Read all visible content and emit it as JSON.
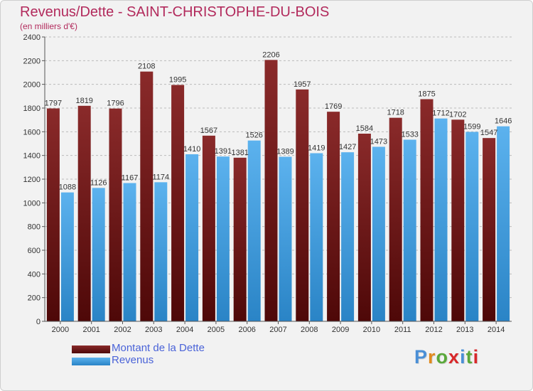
{
  "header": {
    "title": "Revenus/Dette - SAINT-CHRISTOPHE-DU-BOIS",
    "subtitle": "(en milliers d'€)"
  },
  "logo": {
    "text": "Proxiti"
  },
  "legend": [
    {
      "label": "Montant de la Dette",
      "color": "#7a1c1c"
    },
    {
      "label": "Revenus",
      "color": "#4ba6e3"
    }
  ],
  "chart_data": {
    "type": "bar",
    "title": "Revenus/Dette - SAINT-CHRISTOPHE-DU-BOIS",
    "subtitle": "(en milliers d'€)",
    "categories": [
      "2000",
      "2001",
      "2002",
      "2003",
      "2004",
      "2005",
      "2006",
      "2007",
      "2008",
      "2009",
      "2010",
      "2011",
      "2012",
      "2013",
      "2014"
    ],
    "series": [
      {
        "name": "Montant de la Dette",
        "color": "#7a1c1c",
        "values": [
          1797,
          1819,
          1796,
          2108,
          1995,
          1567,
          1381,
          2206,
          1957,
          1769,
          1584,
          1718,
          1875,
          1702,
          1547
        ],
        "labels": [
          "1797",
          "1819",
          "1796",
          "2108",
          "1995",
          "1567",
          "1381",
          "2206",
          "1957",
          "1769",
          "1584",
          "1718",
          "1875",
          "1702",
          "1547"
        ]
      },
      {
        "name": "Revenus",
        "color": "#4ba6e3",
        "values": [
          1088,
          1126,
          1167,
          1174,
          1410,
          1391,
          1526,
          1389,
          1419,
          1427,
          1473,
          1533,
          1712,
          1599,
          1646
        ],
        "labels": [
          "1088",
          "1126",
          "1167",
          "1174",
          "1410",
          "1391",
          "1526",
          "1389",
          "1419",
          "1427",
          "1473",
          "1533",
          "1712",
          "1599",
          "1646"
        ]
      }
    ],
    "ylim": [
      0,
      2400
    ],
    "yticks": [
      0,
      200,
      400,
      600,
      800,
      1000,
      1200,
      1400,
      1600,
      1800,
      2000,
      2200,
      2400
    ],
    "grid": true,
    "legend_position": "bottom-left"
  }
}
